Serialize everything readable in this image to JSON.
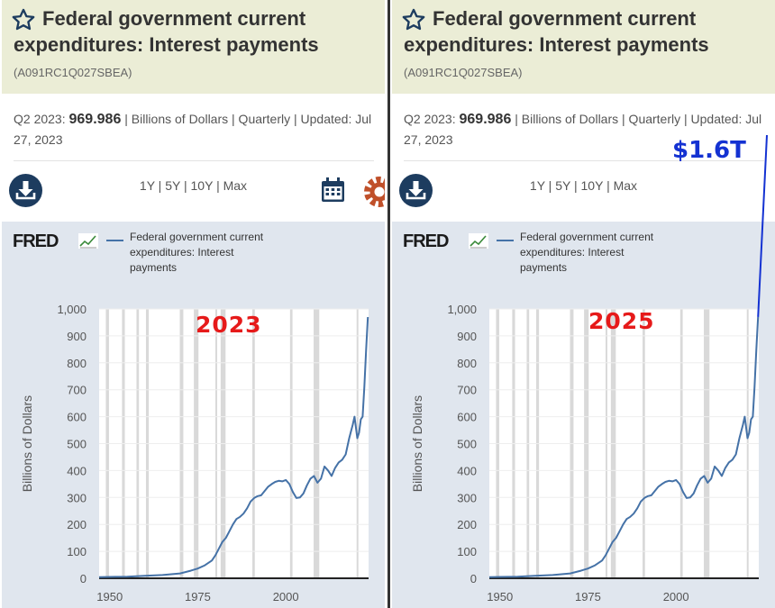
{
  "panels": [
    {
      "title": "Federal government current expenditures: Interest payments",
      "series_id": "(A091RC1Q027SBEA)",
      "stat_period": "Q2 2023:",
      "stat_value": "969.986",
      "stat_meta": " | Billions of Dollars | Quarterly | Updated: Jul 27, 2023",
      "range_1y": "1Y",
      "range_5y": "5Y",
      "range_10y": "10Y",
      "range_max": "Max",
      "sep": " | ",
      "fred_logo": "FRED",
      "legend_label": "Federal government current expenditures: Interest payments",
      "overlay_year": "2023",
      "icons": [
        "star-icon",
        "download-icon",
        "calendar-icon",
        "gear-icon"
      ]
    },
    {
      "title": "Federal government current expenditures: Interest payments",
      "series_id": "(A091RC1Q027SBEA)",
      "stat_period": "Q2 2023:",
      "stat_value": "969.986",
      "stat_meta": " | Billions of Dollars | Quarterly | Updated: Jul 27, 2023",
      "range_1y": "1Y",
      "range_5y": "5Y",
      "range_10y": "10Y",
      "range_max": "Max",
      "sep": " | ",
      "fred_logo": "FRED",
      "legend_label": "Federal government current expenditures: Interest payments",
      "overlay_year": "2025",
      "overlay_callout": "$1.6T",
      "icons": [
        "star-icon",
        "download-icon"
      ]
    }
  ],
  "colors": {
    "header_bg": "#ebedd6",
    "chart_bg": "#e0e6ee",
    "series_line": "#4572a7",
    "download_button": "#1d3c5f",
    "calendar_icon": "#1d3c5f",
    "gear_icon": "#c0502a",
    "overlay_year": "#e61a1a",
    "overlay_callout": "#1432d2",
    "recession_band": "#d9d9d9"
  },
  "chart_data": [
    {
      "type": "line",
      "title": "Federal government current expenditures: Interest payments",
      "ylabel": "Billions of Dollars",
      "xlabel": "",
      "ylim": [
        0,
        1000
      ],
      "xlim": [
        1947,
        2023.5
      ],
      "yticks": [
        0,
        100,
        200,
        300,
        400,
        500,
        600,
        700,
        800,
        900,
        1000
      ],
      "ytick_labels": [
        "0",
        "100",
        "200",
        "300",
        "400",
        "500",
        "600",
        "700",
        "800",
        "900",
        "1,000"
      ],
      "xticks": [
        1950,
        1975,
        2000
      ],
      "xtick_labels": [
        "1950",
        "1975",
        "2000"
      ],
      "grid": true,
      "legend_position": "top",
      "recessions": [
        [
          1948.9,
          1949.8
        ],
        [
          1953.5,
          1954.3
        ],
        [
          1957.6,
          1958.3
        ],
        [
          1960.3,
          1961.1
        ],
        [
          1969.9,
          1970.9
        ],
        [
          1973.9,
          1975.2
        ],
        [
          1980.0,
          1980.5
        ],
        [
          1981.5,
          1982.9
        ],
        [
          1990.5,
          1991.2
        ],
        [
          2001.2,
          2001.9
        ],
        [
          2007.9,
          2009.5
        ],
        [
          2020.1,
          2020.4
        ]
      ],
      "series": [
        {
          "name": "Federal government current expenditures: Interest payments",
          "x": [
            1947,
            1950,
            1955,
            1960,
            1965,
            1970,
            1973,
            1975,
            1977,
            1979,
            1980,
            1981,
            1982,
            1983,
            1984,
            1985,
            1986,
            1987,
            1988,
            1989,
            1990,
            1991,
            1992,
            1993,
            1995,
            1996,
            1997,
            1998,
            1999,
            2000,
            2001,
            2002,
            2003,
            2004,
            2005,
            2006,
            2007,
            2008,
            2009,
            2010,
            2011,
            2012,
            2013,
            2014,
            2015,
            2016,
            2017,
            2018,
            2019,
            2019.5,
            2020.3,
            2020.8,
            2021.3,
            2021.8,
            2022.3,
            2022.8,
            2023.3
          ],
          "y": [
            4,
            5,
            6,
            9,
            12,
            18,
            28,
            36,
            48,
            66,
            85,
            110,
            135,
            150,
            175,
            200,
            220,
            228,
            240,
            260,
            285,
            298,
            305,
            308,
            340,
            350,
            358,
            362,
            360,
            365,
            350,
            320,
            298,
            300,
            315,
            345,
            370,
            380,
            355,
            370,
            415,
            400,
            380,
            410,
            430,
            440,
            460,
            520,
            570,
            600,
            520,
            540,
            590,
            600,
            710,
            850,
            970
          ]
        }
      ],
      "overlay_text": "2023"
    },
    {
      "type": "line",
      "title": "Federal government current expenditures: Interest payments",
      "ylabel": "Billions of Dollars",
      "xlabel": "",
      "ylim": [
        0,
        1000
      ],
      "xlim": [
        1947,
        2023.5
      ],
      "yticks": [
        0,
        100,
        200,
        300,
        400,
        500,
        600,
        700,
        800,
        900,
        1000
      ],
      "ytick_labels": [
        "0",
        "100",
        "200",
        "300",
        "400",
        "500",
        "600",
        "700",
        "800",
        "900",
        "1,000"
      ],
      "xticks": [
        1950,
        1975,
        2000
      ],
      "xtick_labels": [
        "1950",
        "1975",
        "2000"
      ],
      "grid": true,
      "legend_position": "top",
      "recessions": [
        [
          1948.9,
          1949.8
        ],
        [
          1953.5,
          1954.3
        ],
        [
          1957.6,
          1958.3
        ],
        [
          1960.3,
          1961.1
        ],
        [
          1969.9,
          1970.9
        ],
        [
          1973.9,
          1975.2
        ],
        [
          1980.0,
          1980.5
        ],
        [
          1981.5,
          1982.9
        ],
        [
          1990.5,
          1991.2
        ],
        [
          2001.2,
          2001.9
        ],
        [
          2007.9,
          2009.5
        ],
        [
          2020.1,
          2020.4
        ]
      ],
      "series": [
        {
          "name": "Federal government current expenditures: Interest payments",
          "x": [
            1947,
            1950,
            1955,
            1960,
            1965,
            1970,
            1973,
            1975,
            1977,
            1979,
            1980,
            1981,
            1982,
            1983,
            1984,
            1985,
            1986,
            1987,
            1988,
            1989,
            1990,
            1991,
            1992,
            1993,
            1995,
            1996,
            1997,
            1998,
            1999,
            2000,
            2001,
            2002,
            2003,
            2004,
            2005,
            2006,
            2007,
            2008,
            2009,
            2010,
            2011,
            2012,
            2013,
            2014,
            2015,
            2016,
            2017,
            2018,
            2019,
            2019.5,
            2020.3,
            2020.8,
            2021.3,
            2021.8,
            2022.3,
            2022.8,
            2023.3
          ],
          "y": [
            4,
            5,
            6,
            9,
            12,
            18,
            28,
            36,
            48,
            66,
            85,
            110,
            135,
            150,
            175,
            200,
            220,
            228,
            240,
            260,
            285,
            298,
            305,
            308,
            340,
            350,
            358,
            362,
            360,
            365,
            350,
            320,
            298,
            300,
            315,
            345,
            370,
            380,
            355,
            370,
            415,
            400,
            380,
            410,
            430,
            440,
            460,
            520,
            570,
            600,
            520,
            540,
            590,
            600,
            710,
            850,
            970
          ]
        }
      ],
      "overlay_text": "2025",
      "extension_line": {
        "from": [
          2023.3,
          970
        ],
        "to": [
          2025.5,
          1600
        ],
        "label": "$1.6T",
        "color": "#1432d2"
      }
    }
  ]
}
